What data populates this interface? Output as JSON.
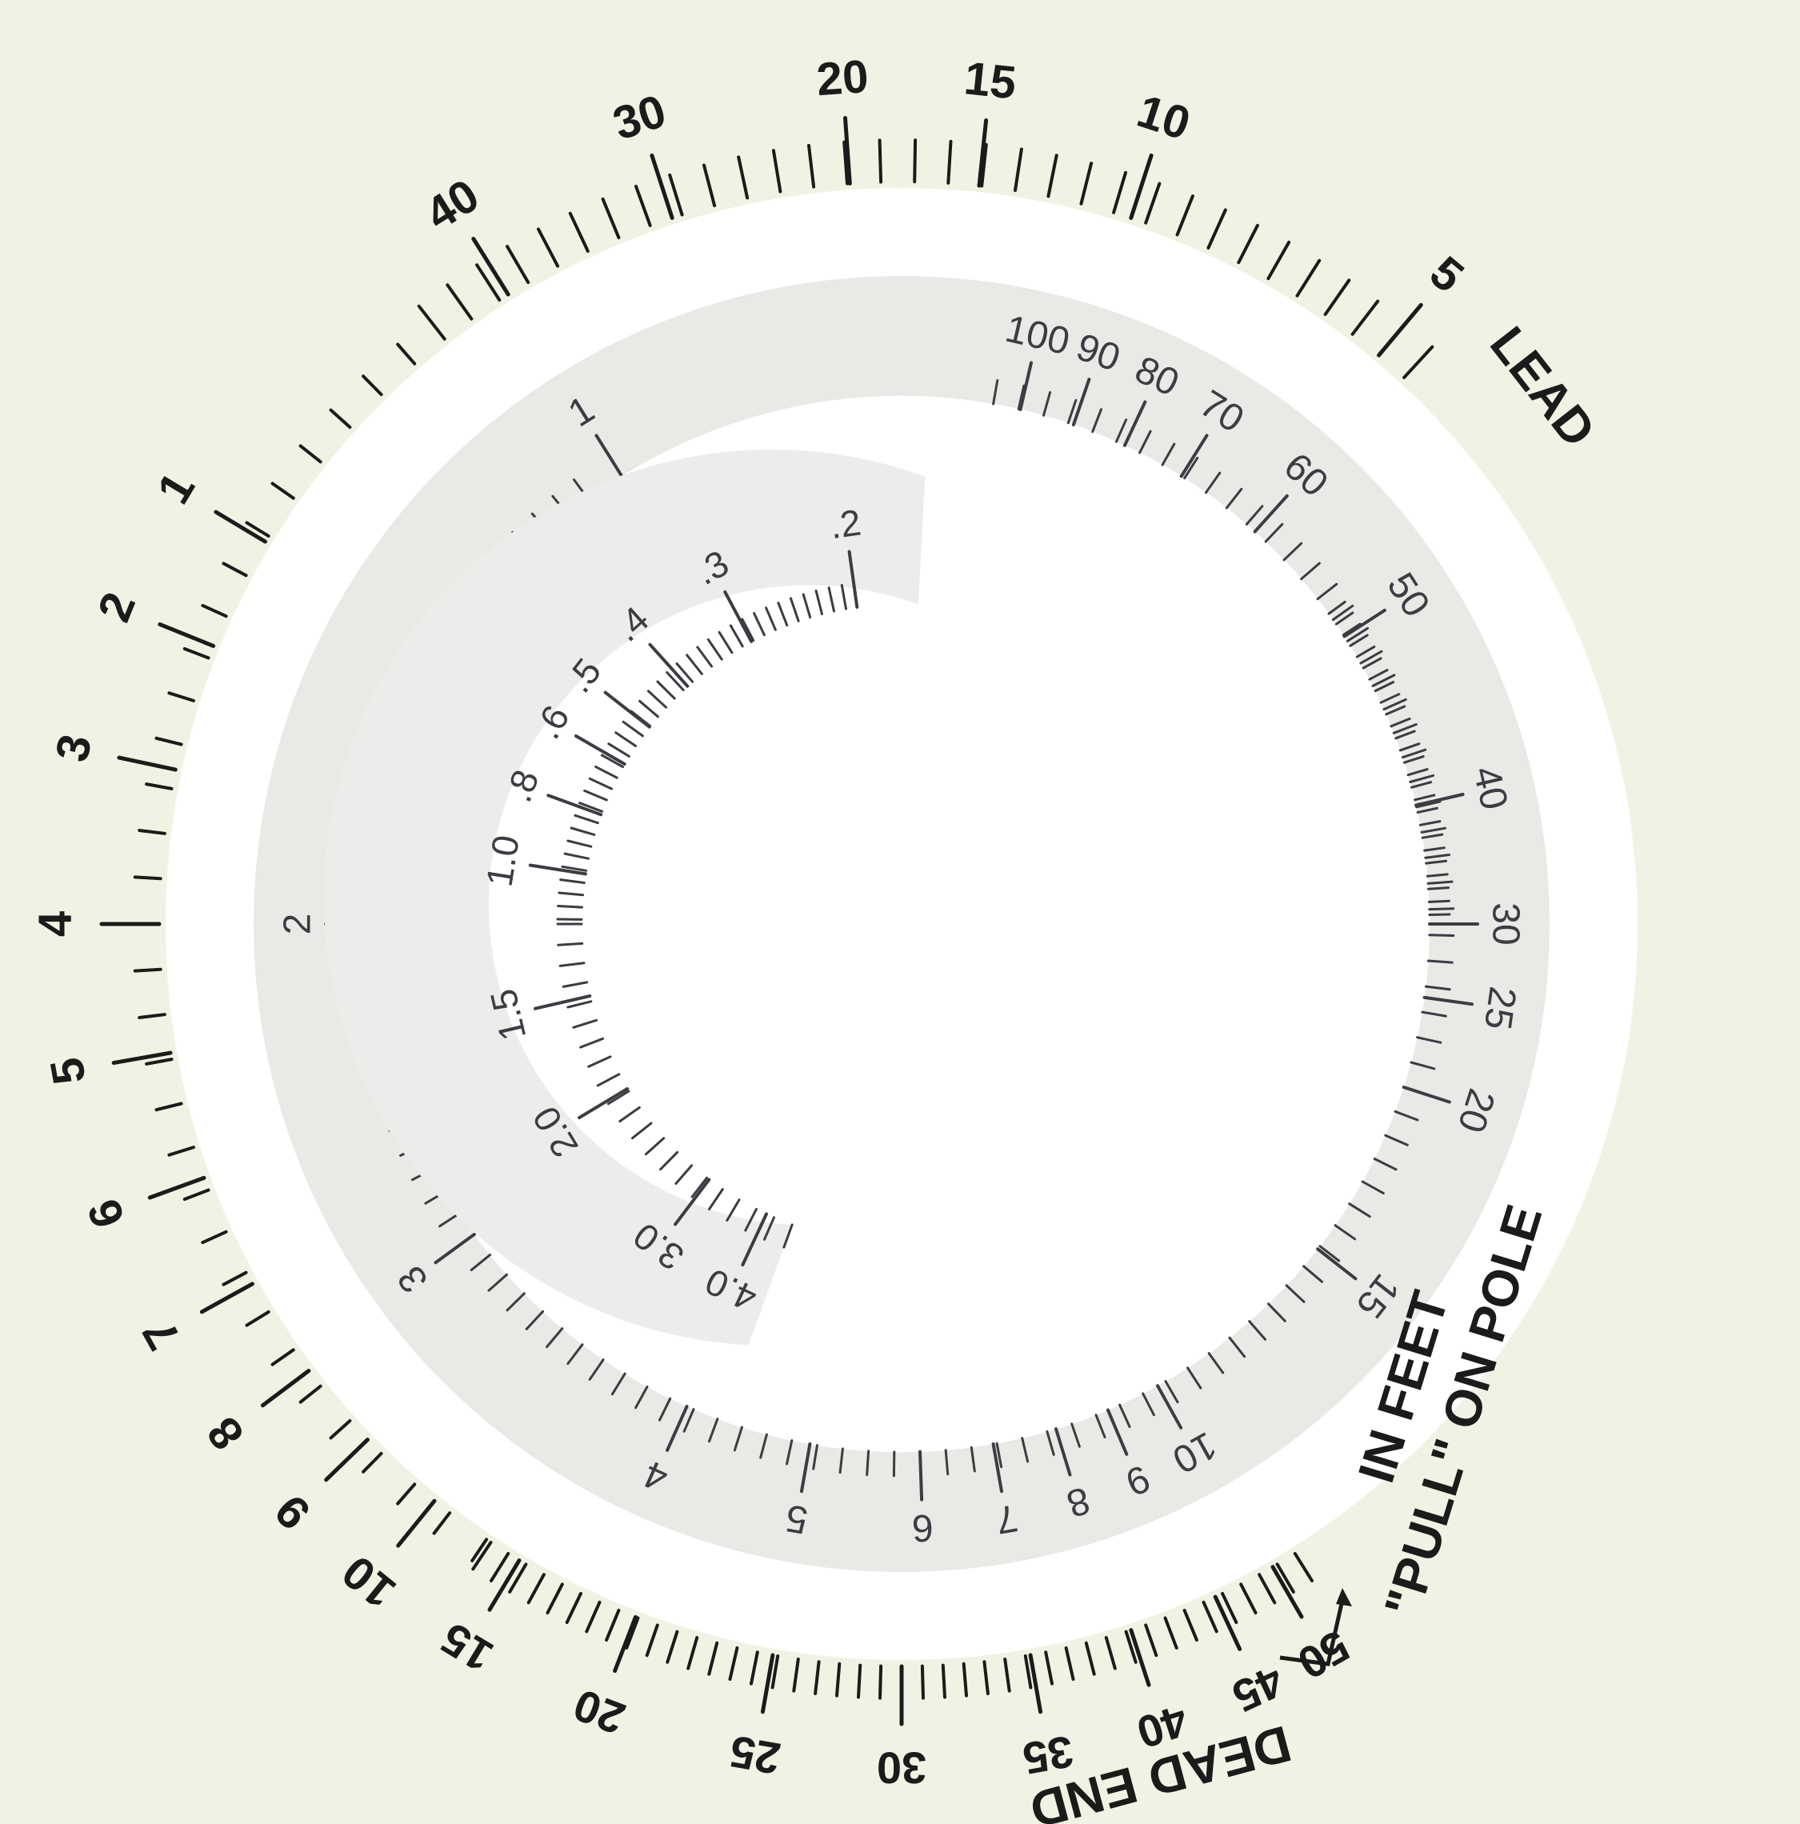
{
  "calculator": {
    "caption_pull": "\"PULL\" ON POLE",
    "caption_in_feet": "IN FEET",
    "caption_lead": "LEAD",
    "caption_dead_end": "DEAD END",
    "colors": {
      "card": "#f2f2e4",
      "window": "#ffffff",
      "disc": "#e9e9e6",
      "ink": "#1b1b1b",
      "disc_ink": "#3a3d42"
    }
  },
  "outer_scale": {
    "top_labels": [
      "40",
      "30",
      "20",
      "15",
      "10",
      "5"
    ],
    "left_labels": [
      "1",
      "2",
      "3",
      "4",
      "5",
      "6",
      "7",
      "8",
      "9",
      "10"
    ],
    "bottom_labels": [
      "15",
      "20",
      "25",
      "30",
      "35",
      "40",
      "45",
      "50"
    ]
  },
  "middle_scale": {
    "labels": [
      "100",
      "90",
      "80",
      "70",
      "60",
      "50",
      "40",
      "30",
      "25",
      "20",
      "15",
      "10",
      "9",
      "8",
      "7",
      "6",
      "5",
      "4",
      "3",
      "2",
      "1"
    ]
  },
  "inner_scale": {
    "labels": [
      ".2",
      ".3",
      ".4",
      ".5",
      ".6",
      ".8",
      "1.0",
      "1.5",
      "2.0",
      "3.0",
      "4.0"
    ]
  }
}
